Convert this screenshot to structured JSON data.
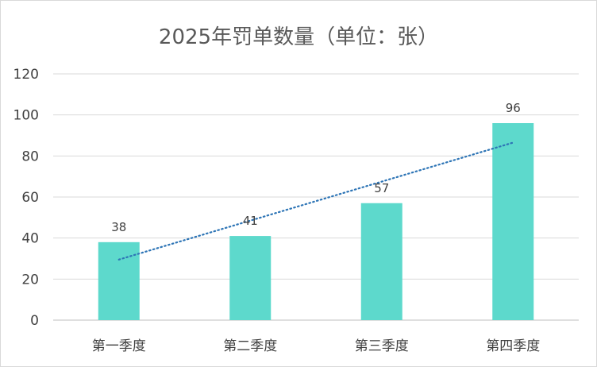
{
  "chart_data": {
    "type": "bar",
    "title": "2025年罚单数量（单位：张）",
    "categories": [
      "第一季度",
      "第二季度",
      "第三季度",
      "第四季度"
    ],
    "series": [
      {
        "values": [
          38,
          41,
          57,
          96
        ],
        "color": "#5DD9CC"
      }
    ],
    "data_labels": [
      "38",
      "41",
      "57",
      "96"
    ],
    "trendline": {
      "type": "linear",
      "style": "dotted",
      "color": "#2E75B6"
    },
    "ylim": [
      0,
      120
    ],
    "yticks": [
      0,
      20,
      40,
      60,
      80,
      100,
      120
    ],
    "ytick_labels": [
      "0",
      "20",
      "40",
      "60",
      "80",
      "100",
      "120"
    ],
    "grid": true,
    "legend": "none",
    "xlabel": "",
    "ylabel": ""
  }
}
